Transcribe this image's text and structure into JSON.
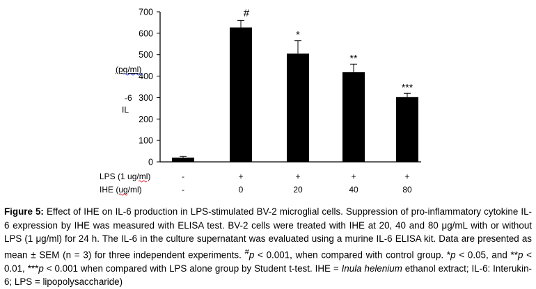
{
  "chart_data": {
    "type": "bar",
    "ylabel_lines": [
      "(pg/ml)",
      "-6",
      "IL"
    ],
    "ylim": [
      0,
      700
    ],
    "yticks": [
      0,
      100,
      200,
      300,
      400,
      500,
      600,
      700
    ],
    "values": [
      20,
      627,
      505,
      418,
      302
    ],
    "errors": [
      5,
      33,
      60,
      38,
      18
    ],
    "significance": [
      "",
      "#",
      "*",
      "**",
      "***"
    ],
    "rows": [
      {
        "label": "LPS (1 ug/ml)",
        "values": [
          "-",
          "+",
          "+",
          "+",
          "+"
        ]
      },
      {
        "label": "IHE (ug/ml)",
        "values": [
          "-",
          "0",
          "20",
          "40",
          "80"
        ]
      }
    ],
    "bar_color": "#000000"
  },
  "caption": {
    "figure_label": "Figure 5:",
    "sentence1": " Effect of IHE on IL-6 production in LPS-stimulated BV-2 microglial cells. Suppression of pro-inflammatory cytokine IL-6 expression by IHE was measured with ELISA test. BV-2 cells were treated with IHE at 20, 40 and 80 μg/mL with or without LPS (1 μg/ml) for 24 h. The IL-6 in the culture supernatant was evaluated using a murine IL-6 ELISA kit. Data are presented as mean ± SEM (n = 3) for three independent experiments. ",
    "hash_sup": "#",
    "p1": "p",
    "t1": " < 0.001, when compared with control group. *",
    "p2": "p",
    "t2": " < 0.05, and **",
    "p3": "p",
    "t3": " < 0.01, ***",
    "p4": "p",
    "t4": " < 0.001 when compared with LPS alone group by Student t-test. IHE = ",
    "species": "Inula helenium",
    "t5": " ethanol extract; IL-6: Interukin-6; LPS = lipopolysaccharide)"
  }
}
